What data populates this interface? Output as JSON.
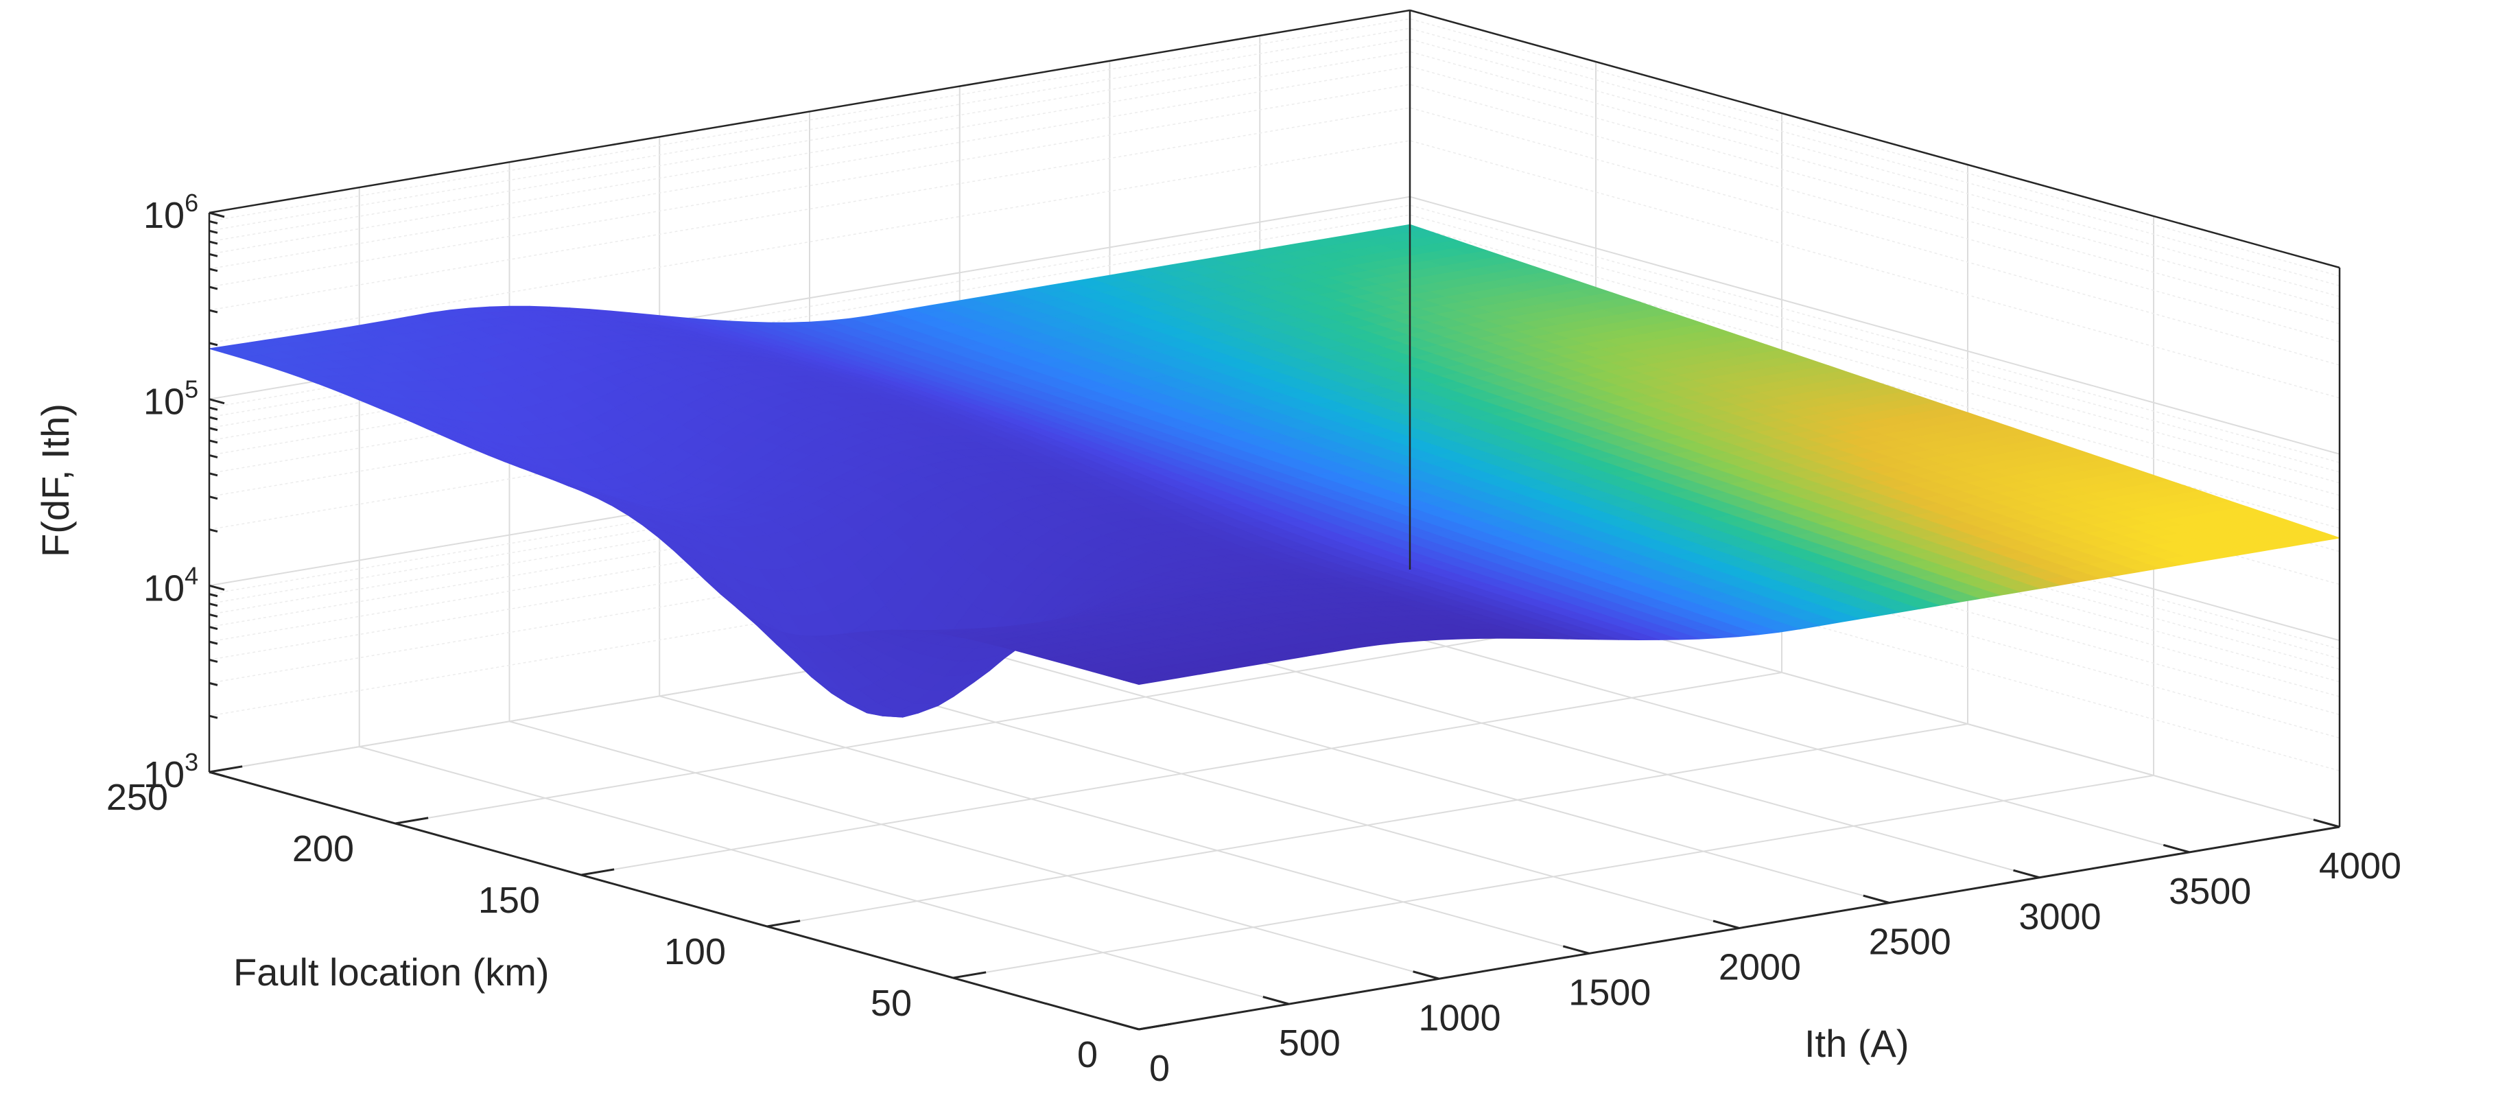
{
  "chart_data": {
    "type": "surface",
    "zscale": "log",
    "colormap": "parula",
    "grid": true,
    "x": {
      "label": "Fault location (km)",
      "lim": [
        0,
        250
      ],
      "ticks": [
        "0",
        "50",
        "100",
        "150",
        "200",
        "250"
      ]
    },
    "y": {
      "label": "Ith (A)",
      "lim": [
        0,
        4000
      ],
      "ticks": [
        "0",
        "500",
        "1000",
        "1500",
        "2000",
        "2500",
        "3000",
        "3500",
        "4000"
      ]
    },
    "z": {
      "label": "F(dF, Ith)",
      "lim": [
        1000,
        1000000
      ],
      "ticks": [
        {
          "base": "10",
          "exp": "3"
        },
        {
          "base": "10",
          "exp": "4"
        },
        {
          "base": "10",
          "exp": "5"
        },
        {
          "base": "10",
          "exp": "6"
        }
      ]
    },
    "surface_profiles": {
      "description_note": "",
      "plateau_high": 200000,
      "ridge_value": 100000,
      "cliff_floor": 8000,
      "minimum": {
        "fault_km": 100,
        "ith_A": 450,
        "value": 1500
      },
      "far_edge_value": 300000,
      "near_edge_value": 40000
    }
  }
}
